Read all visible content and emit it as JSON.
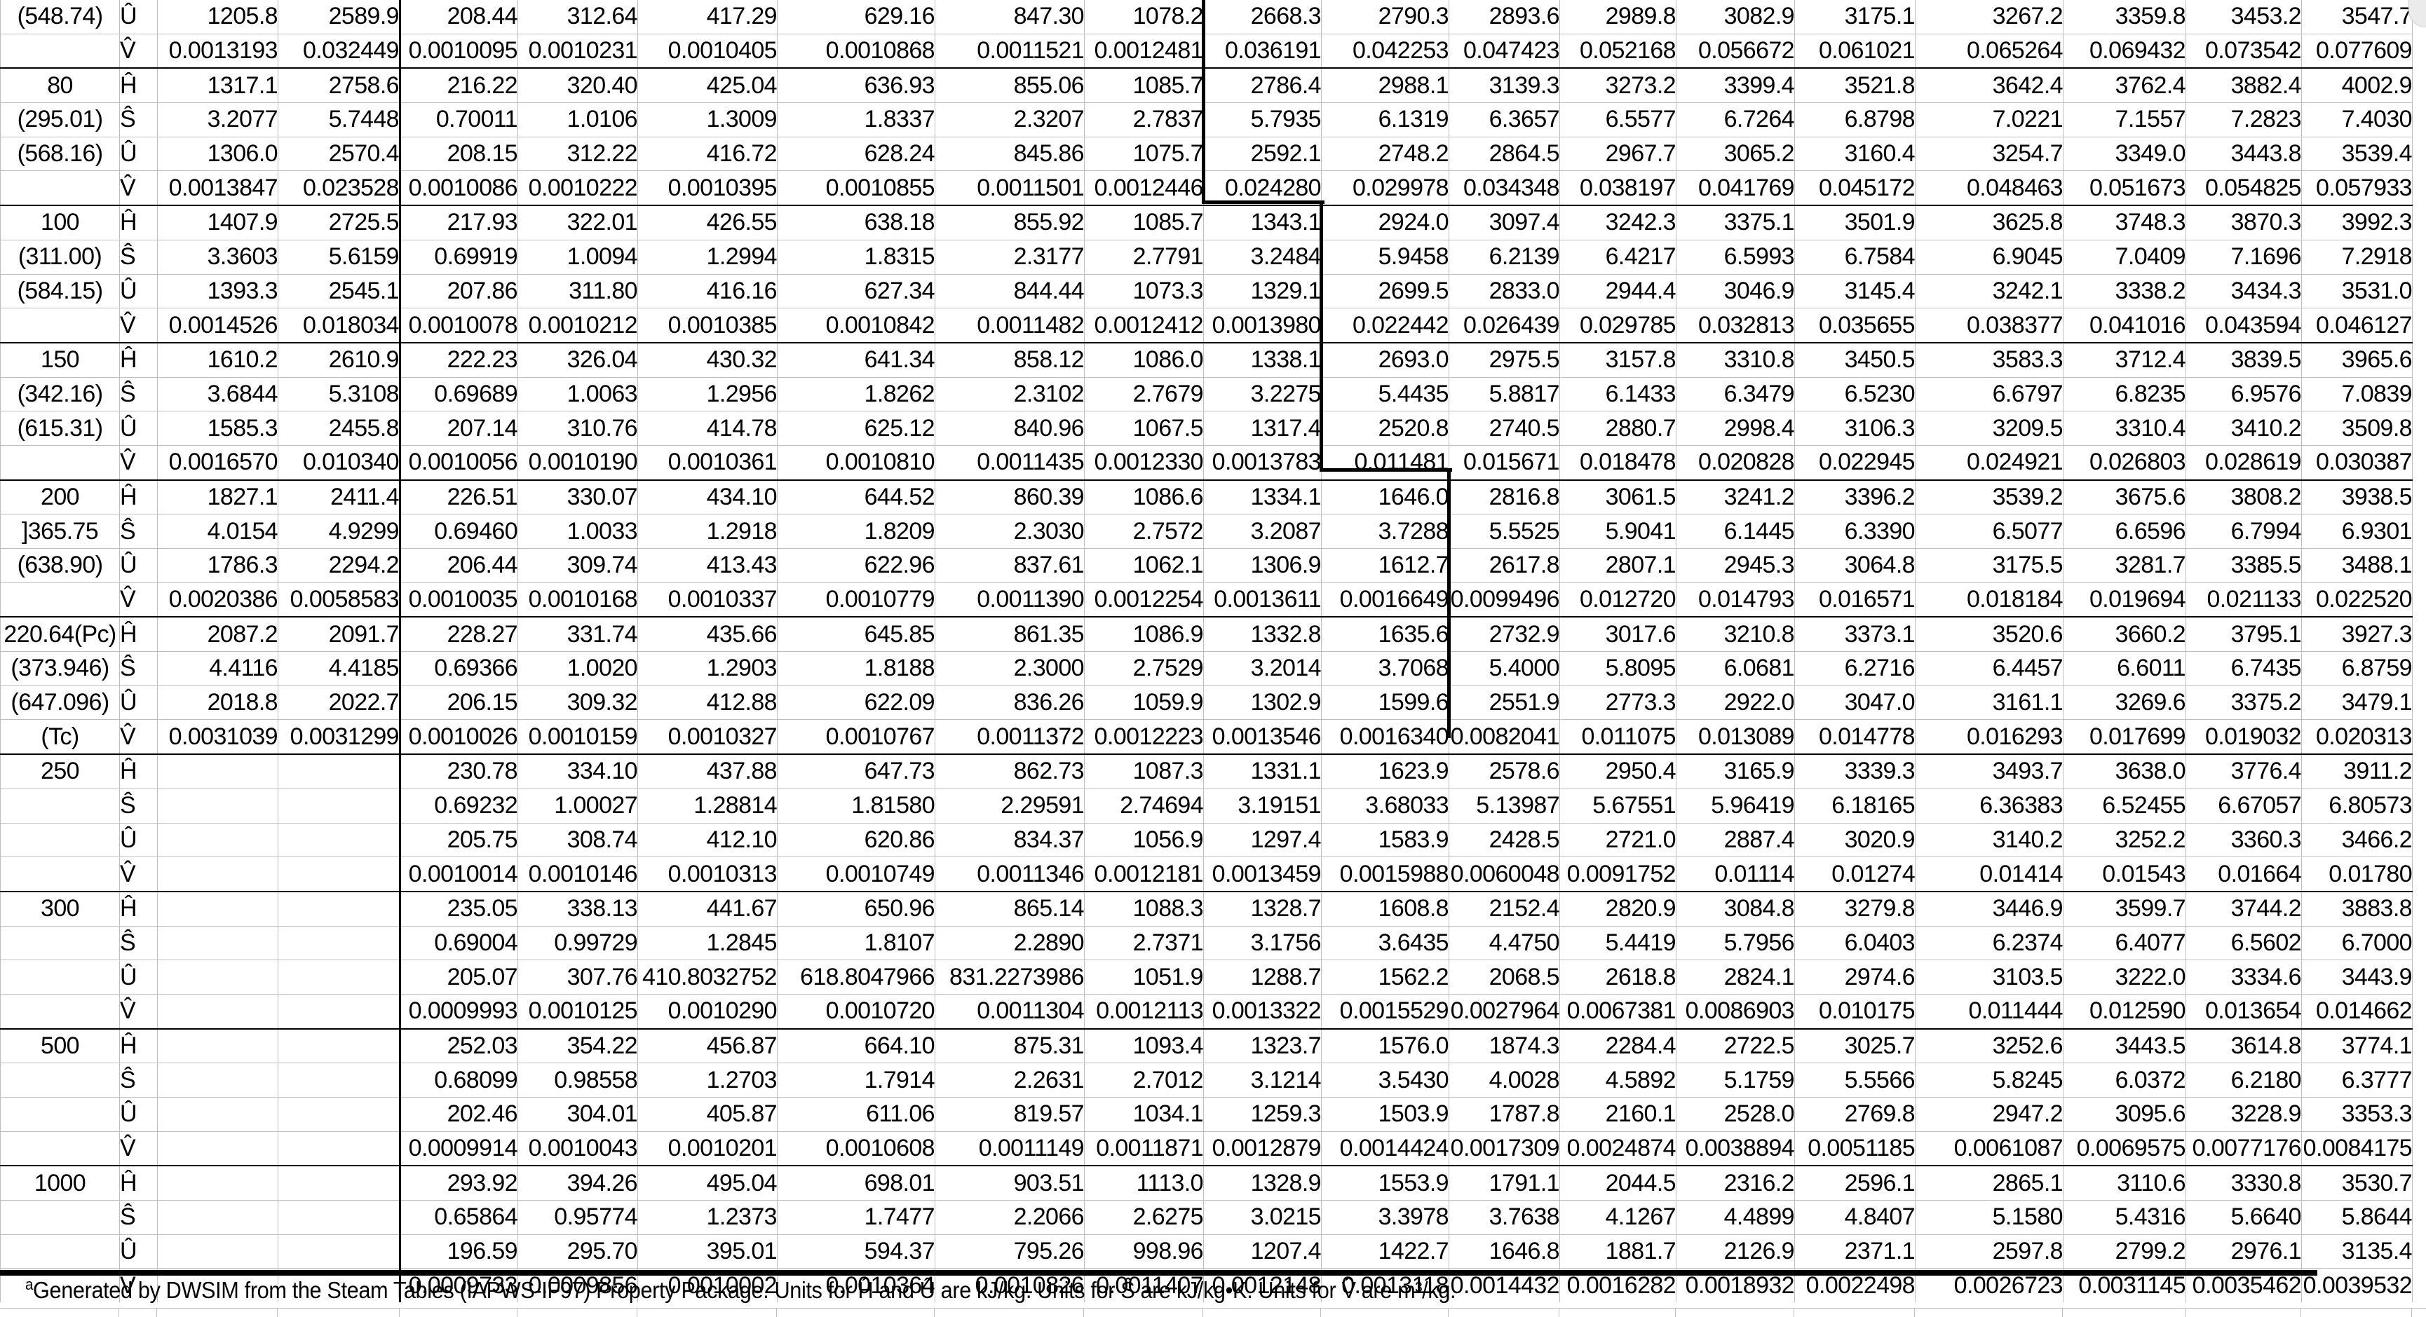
{
  "colors": {
    "gridline": "#bfbfbf",
    "separator": "#000000",
    "background": "#ffffff",
    "text": "#000000",
    "scrollbar": "#ebebeb"
  },
  "footer": {
    "marker": "a",
    "text": "Generated by DWSIM from the Steam Tables (IAPWS-IF97) Property Package. Units for Ĥ and Û are kJ/kg. Units for Ŝ are kJ/kg•K. Units for V̂ are m³/kg."
  },
  "table": {
    "rows": [
      [
        "(548.74)",
        "Û",
        "1205.8",
        "2589.9",
        "208.44",
        "312.64",
        "417.29",
        "629.16",
        "847.30",
        "1078.2",
        "2668.3",
        "2790.3",
        "2893.6",
        "2989.8",
        "3082.9",
        "3175.1",
        "3267.2",
        "3359.8",
        "3453.2",
        "3547.7"
      ],
      [
        "",
        "V̂",
        "0.0013193",
        "0.032449",
        "0.0010095",
        "0.0010231",
        "0.0010405",
        "0.0010868",
        "0.0011521",
        "0.0012481",
        "0.036191",
        "0.042253",
        "0.047423",
        "0.052168",
        "0.056672",
        "0.061021",
        "0.065264",
        "0.069432",
        "0.073542",
        "0.077609"
      ],
      [
        "80",
        "Ĥ",
        "1317.1",
        "2758.6",
        "216.22",
        "320.40",
        "425.04",
        "636.93",
        "855.06",
        "1085.7",
        "2786.4",
        "2988.1",
        "3139.3",
        "3273.2",
        "3399.4",
        "3521.8",
        "3642.4",
        "3762.4",
        "3882.4",
        "4002.9"
      ],
      [
        "(295.01)",
        "Ŝ",
        "3.2077",
        "5.7448",
        "0.70011",
        "1.0106",
        "1.3009",
        "1.8337",
        "2.3207",
        "2.7837",
        "5.7935",
        "6.1319",
        "6.3657",
        "6.5577",
        "6.7264",
        "6.8798",
        "7.0221",
        "7.1557",
        "7.2823",
        "7.4030"
      ],
      [
        "(568.16)",
        "Û",
        "1306.0",
        "2570.4",
        "208.15",
        "312.22",
        "416.72",
        "628.24",
        "845.86",
        "1075.7",
        "2592.1",
        "2748.2",
        "2864.5",
        "2967.7",
        "3065.2",
        "3160.4",
        "3254.7",
        "3349.0",
        "3443.8",
        "3539.4"
      ],
      [
        "",
        "V̂",
        "0.0013847",
        "0.023528",
        "0.0010086",
        "0.0010222",
        "0.0010395",
        "0.0010855",
        "0.0011501",
        "0.0012446",
        "0.024280",
        "0.029978",
        "0.034348",
        "0.038197",
        "0.041769",
        "0.045172",
        "0.048463",
        "0.051673",
        "0.054825",
        "0.057933"
      ],
      [
        "100",
        "Ĥ",
        "1407.9",
        "2725.5",
        "217.93",
        "322.01",
        "426.55",
        "638.18",
        "855.92",
        "1085.7",
        "1343.1",
        "2924.0",
        "3097.4",
        "3242.3",
        "3375.1",
        "3501.9",
        "3625.8",
        "3748.3",
        "3870.3",
        "3992.3"
      ],
      [
        "(311.00)",
        "Ŝ",
        "3.3603",
        "5.6159",
        "0.69919",
        "1.0094",
        "1.2994",
        "1.8315",
        "2.3177",
        "2.7791",
        "3.2484",
        "5.9458",
        "6.2139",
        "6.4217",
        "6.5993",
        "6.7584",
        "6.9045",
        "7.0409",
        "7.1696",
        "7.2918"
      ],
      [
        "(584.15)",
        "Û",
        "1393.3",
        "2545.1",
        "207.86",
        "311.80",
        "416.16",
        "627.34",
        "844.44",
        "1073.3",
        "1329.1",
        "2699.5",
        "2833.0",
        "2944.4",
        "3046.9",
        "3145.4",
        "3242.1",
        "3338.2",
        "3434.3",
        "3531.0"
      ],
      [
        "",
        "V̂",
        "0.0014526",
        "0.018034",
        "0.0010078",
        "0.0010212",
        "0.0010385",
        "0.0010842",
        "0.0011482",
        "0.0012412",
        "0.0013980",
        "0.022442",
        "0.026439",
        "0.029785",
        "0.032813",
        "0.035655",
        "0.038377",
        "0.041016",
        "0.043594",
        "0.046127"
      ],
      [
        "150",
        "Ĥ",
        "1610.2",
        "2610.9",
        "222.23",
        "326.04",
        "430.32",
        "641.34",
        "858.12",
        "1086.0",
        "1338.1",
        "2693.0",
        "2975.5",
        "3157.8",
        "3310.8",
        "3450.5",
        "3583.3",
        "3712.4",
        "3839.5",
        "3965.6"
      ],
      [
        "(342.16)",
        "Ŝ",
        "3.6844",
        "5.3108",
        "0.69689",
        "1.0063",
        "1.2956",
        "1.8262",
        "2.3102",
        "2.7679",
        "3.2275",
        "5.4435",
        "5.8817",
        "6.1433",
        "6.3479",
        "6.5230",
        "6.6797",
        "6.8235",
        "6.9576",
        "7.0839"
      ],
      [
        "(615.31)",
        "Û",
        "1585.3",
        "2455.8",
        "207.14",
        "310.76",
        "414.78",
        "625.12",
        "840.96",
        "1067.5",
        "1317.4",
        "2520.8",
        "2740.5",
        "2880.7",
        "2998.4",
        "3106.3",
        "3209.5",
        "3310.4",
        "3410.2",
        "3509.8"
      ],
      [
        "",
        "V̂",
        "0.0016570",
        "0.010340",
        "0.0010056",
        "0.0010190",
        "0.0010361",
        "0.0010810",
        "0.0011435",
        "0.0012330",
        "0.0013783",
        "0.011481",
        "0.015671",
        "0.018478",
        "0.020828",
        "0.022945",
        "0.024921",
        "0.026803",
        "0.028619",
        "0.030387"
      ],
      [
        "200",
        "Ĥ",
        "1827.1",
        "2411.4",
        "226.51",
        "330.07",
        "434.10",
        "644.52",
        "860.39",
        "1086.6",
        "1334.1",
        "1646.0",
        "2816.8",
        "3061.5",
        "3241.2",
        "3396.2",
        "3539.2",
        "3675.6",
        "3808.2",
        "3938.5"
      ],
      [
        "]365.75",
        "Ŝ",
        "4.0154",
        "4.9299",
        "0.69460",
        "1.0033",
        "1.2918",
        "1.8209",
        "2.3030",
        "2.7572",
        "3.2087",
        "3.7288",
        "5.5525",
        "5.9041",
        "6.1445",
        "6.3390",
        "6.5077",
        "6.6596",
        "6.7994",
        "6.9301"
      ],
      [
        "(638.90)",
        "Û",
        "1786.3",
        "2294.2",
        "206.44",
        "309.74",
        "413.43",
        "622.96",
        "837.61",
        "1062.1",
        "1306.9",
        "1612.7",
        "2617.8",
        "2807.1",
        "2945.3",
        "3064.8",
        "3175.5",
        "3281.7",
        "3385.5",
        "3488.1"
      ],
      [
        "",
        "V̂",
        "0.0020386",
        "0.0058583",
        "0.0010035",
        "0.0010168",
        "0.0010337",
        "0.0010779",
        "0.0011390",
        "0.0012254",
        "0.0013611",
        "0.0016649",
        "0.0099496",
        "0.012720",
        "0.014793",
        "0.016571",
        "0.018184",
        "0.019694",
        "0.021133",
        "0.022520"
      ],
      [
        "220.64(Pc)",
        "Ĥ",
        "2087.2",
        "2091.7",
        "228.27",
        "331.74",
        "435.66",
        "645.85",
        "861.35",
        "1086.9",
        "1332.8",
        "1635.6",
        "2732.9",
        "3017.6",
        "3210.8",
        "3373.1",
        "3520.6",
        "3660.2",
        "3795.1",
        "3927.3"
      ],
      [
        "(373.946)",
        "Ŝ",
        "4.4116",
        "4.4185",
        "0.69366",
        "1.0020",
        "1.2903",
        "1.8188",
        "2.3000",
        "2.7529",
        "3.2014",
        "3.7068",
        "5.4000",
        "5.8095",
        "6.0681",
        "6.2716",
        "6.4457",
        "6.6011",
        "6.7435",
        "6.8759"
      ],
      [
        "(647.096)",
        "Û",
        "2018.8",
        "2022.7",
        "206.15",
        "309.32",
        "412.88",
        "622.09",
        "836.26",
        "1059.9",
        "1302.9",
        "1599.6",
        "2551.9",
        "2773.3",
        "2922.0",
        "3047.0",
        "3161.1",
        "3269.6",
        "3375.2",
        "3479.1"
      ],
      [
        "(Tc)",
        "V̂",
        "0.0031039",
        "0.0031299",
        "0.0010026",
        "0.0010159",
        "0.0010327",
        "0.0010767",
        "0.0011372",
        "0.0012223",
        "0.0013546",
        "0.0016340",
        "0.0082041",
        "0.011075",
        "0.013089",
        "0.014778",
        "0.016293",
        "0.017699",
        "0.019032",
        "0.020313"
      ],
      [
        "250",
        "Ĥ",
        "",
        "",
        "230.78",
        "334.10",
        "437.88",
        "647.73",
        "862.73",
        "1087.3",
        "1331.1",
        "1623.9",
        "2578.6",
        "2950.4",
        "3165.9",
        "3339.3",
        "3493.7",
        "3638.0",
        "3776.4",
        "3911.2"
      ],
      [
        "",
        "Ŝ",
        "",
        "",
        "0.69232",
        "1.00027",
        "1.28814",
        "1.81580",
        "2.29591",
        "2.74694",
        "3.19151",
        "3.68033",
        "5.13987",
        "5.67551",
        "5.96419",
        "6.18165",
        "6.36383",
        "6.52455",
        "6.67057",
        "6.80573"
      ],
      [
        "",
        "Û",
        "",
        "",
        "205.75",
        "308.74",
        "412.10",
        "620.86",
        "834.37",
        "1056.9",
        "1297.4",
        "1583.9",
        "2428.5",
        "2721.0",
        "2887.4",
        "3020.9",
        "3140.2",
        "3252.2",
        "3360.3",
        "3466.2"
      ],
      [
        "",
        "V̂",
        "",
        "",
        "0.0010014",
        "0.0010146",
        "0.0010313",
        "0.0010749",
        "0.0011346",
        "0.0012181",
        "0.0013459",
        "0.0015988",
        "0.0060048",
        "0.0091752",
        "0.01114",
        "0.01274",
        "0.01414",
        "0.01543",
        "0.01664",
        "0.01780"
      ],
      [
        "300",
        "Ĥ",
        "",
        "",
        "235.05",
        "338.13",
        "441.67",
        "650.96",
        "865.14",
        "1088.3",
        "1328.7",
        "1608.8",
        "2152.4",
        "2820.9",
        "3084.8",
        "3279.8",
        "3446.9",
        "3599.7",
        "3744.2",
        "3883.8"
      ],
      [
        "",
        "Ŝ",
        "",
        "",
        "0.69004",
        "0.99729",
        "1.2845",
        "1.8107",
        "2.2890",
        "2.7371",
        "3.1756",
        "3.6435",
        "4.4750",
        "5.4419",
        "5.7956",
        "6.0403",
        "6.2374",
        "6.4077",
        "6.5602",
        "6.7000"
      ],
      [
        "",
        "Û",
        "",
        "",
        "205.07",
        "307.76",
        "410.8032752",
        "618.8047966",
        "831.2273986",
        "1051.9",
        "1288.7",
        "1562.2",
        "2068.5",
        "2618.8",
        "2824.1",
        "2974.6",
        "3103.5",
        "3222.0",
        "3334.6",
        "3443.9"
      ],
      [
        "",
        "V̂",
        "",
        "",
        "0.0009993",
        "0.0010125",
        "0.0010290",
        "0.0010720",
        "0.0011304",
        "0.0012113",
        "0.0013322",
        "0.0015529",
        "0.0027964",
        "0.0067381",
        "0.0086903",
        "0.010175",
        "0.011444",
        "0.012590",
        "0.013654",
        "0.014662"
      ],
      [
        "500",
        "Ĥ",
        "",
        "",
        "252.03",
        "354.22",
        "456.87",
        "664.10",
        "875.31",
        "1093.4",
        "1323.7",
        "1576.0",
        "1874.3",
        "2284.4",
        "2722.5",
        "3025.7",
        "3252.6",
        "3443.5",
        "3614.8",
        "3774.1"
      ],
      [
        "",
        "Ŝ",
        "",
        "",
        "0.68099",
        "0.98558",
        "1.2703",
        "1.7914",
        "2.2631",
        "2.7012",
        "3.1214",
        "3.5430",
        "4.0028",
        "4.5892",
        "5.1759",
        "5.5566",
        "5.8245",
        "6.0372",
        "6.2180",
        "6.3777"
      ],
      [
        "",
        "Û",
        "",
        "",
        "202.46",
        "304.01",
        "405.87",
        "611.06",
        "819.57",
        "1034.1",
        "1259.3",
        "1503.9",
        "1787.8",
        "2160.1",
        "2528.0",
        "2769.8",
        "2947.2",
        "3095.6",
        "3228.9",
        "3353.3"
      ],
      [
        "",
        "V̂",
        "",
        "",
        "0.0009914",
        "0.0010043",
        "0.0010201",
        "0.0010608",
        "0.0011149",
        "0.0011871",
        "0.0012879",
        "0.0014424",
        "0.0017309",
        "0.0024874",
        "0.0038894",
        "0.0051185",
        "0.0061087",
        "0.0069575",
        "0.0077176",
        "0.0084175"
      ],
      [
        "1000",
        "Ĥ",
        "",
        "",
        "293.92",
        "394.26",
        "495.04",
        "698.01",
        "903.51",
        "1113.0",
        "1328.9",
        "1553.9",
        "1791.1",
        "2044.5",
        "2316.2",
        "2596.1",
        "2865.1",
        "3110.6",
        "3330.8",
        "3530.7"
      ],
      [
        "",
        "Ŝ",
        "",
        "",
        "0.65864",
        "0.95774",
        "1.2373",
        "1.7477",
        "2.2066",
        "2.6275",
        "3.0215",
        "3.3978",
        "3.7638",
        "4.1267",
        "4.4899",
        "4.8407",
        "5.1580",
        "5.4316",
        "5.6640",
        "5.8644"
      ],
      [
        "",
        "Û",
        "",
        "",
        "196.59",
        "295.70",
        "395.01",
        "594.37",
        "795.26",
        "998.96",
        "1207.4",
        "1422.7",
        "1646.8",
        "1881.7",
        "2126.9",
        "2371.1",
        "2597.8",
        "2799.2",
        "2976.1",
        "3135.4"
      ],
      [
        "",
        "V̂",
        "",
        "",
        "0.0009733",
        "0.0009856",
        "0.0010002",
        "0.0010364",
        "0.0010826",
        "0.0011407",
        "0.0012148",
        "0.0013118",
        "0.0014432",
        "0.0016282",
        "0.0018932",
        "0.0022498",
        "0.0026723",
        "0.0031145",
        "0.0035462",
        "0.0039532"
      ]
    ]
  }
}
